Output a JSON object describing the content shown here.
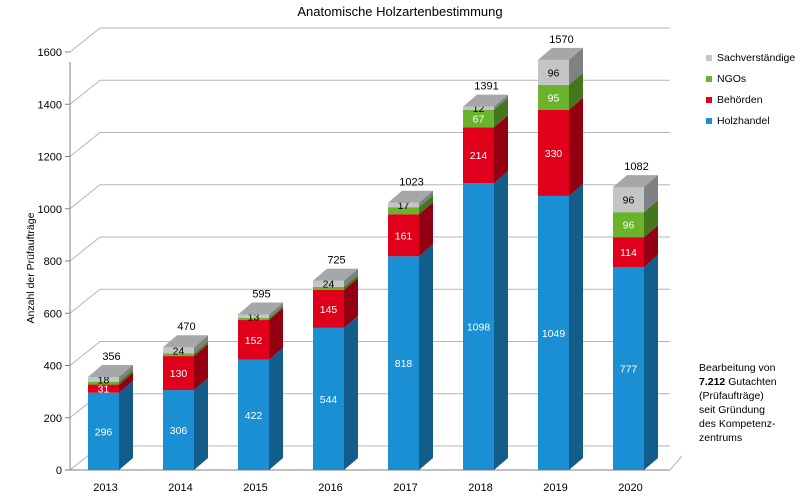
{
  "chart_data": {
    "type": "bar",
    "stacked": true,
    "style": "3d",
    "title": "Anatomische Holzartenbestimmung",
    "xlabel": "",
    "ylabel": "Anzahl der Prüfaufträge",
    "ylim": [
      0,
      1600
    ],
    "yticks": [
      0,
      200,
      400,
      600,
      800,
      1000,
      1200,
      1400,
      1600
    ],
    "ytick_labels": [
      "0",
      "200",
      "400",
      "600",
      "800",
      "1000",
      "1200",
      "1400",
      "1600"
    ],
    "grid": true,
    "legend_position": "right",
    "categories": [
      "2013",
      "2014",
      "2015",
      "2016",
      "2017",
      "2018",
      "2019",
      "2020"
    ],
    "series": [
      {
        "name": "Holzhandel",
        "color": "#1b8fd4",
        "values": [
          296,
          306,
          422,
          544,
          818,
          1098,
          1049,
          777
        ],
        "labels": [
          "296",
          "306",
          "422",
          "544",
          "818",
          "1098",
          "1049",
          "777"
        ]
      },
      {
        "name": "Behörden",
        "color": "#e0001b",
        "values": [
          31,
          130,
          152,
          145,
          161,
          214,
          330,
          114
        ],
        "labels": [
          "31",
          "130",
          "152",
          "145",
          "161",
          "214",
          "330",
          "114"
        ]
      },
      {
        "name": "NGOs",
        "color": "#6ab42c",
        "values": [
          11,
          10,
          8,
          12,
          27,
          67,
          95,
          96
        ],
        "labels": [
          "",
          "",
          "",
          "",
          "",
          "67",
          "95",
          "96"
        ]
      },
      {
        "name": "Sachverständige",
        "color": "#c3c5c7",
        "values": [
          18,
          24,
          13,
          24,
          17,
          12,
          96,
          96
        ],
        "labels": [
          "18",
          "24",
          "13",
          "24",
          "17",
          "12",
          "96",
          "96"
        ]
      }
    ],
    "totals": [
      356,
      470,
      595,
      725,
      1023,
      1391,
      1570,
      1082
    ],
    "total_labels": [
      "356",
      "470",
      "595",
      "725",
      "1023",
      "1391",
      "1570",
      "1082"
    ],
    "legend_order": [
      "Sachverständige",
      "NGOs",
      "Behörden",
      "Holzhandel"
    ]
  },
  "note": {
    "line1": "Bearbeitung von",
    "count": "7.212",
    "line2_rest": " Gutachten",
    "line3": "(Prüfaufträge)",
    "line4": "seit Gründung",
    "line5": "des Kompetenz-",
    "line6": "zentrums"
  }
}
